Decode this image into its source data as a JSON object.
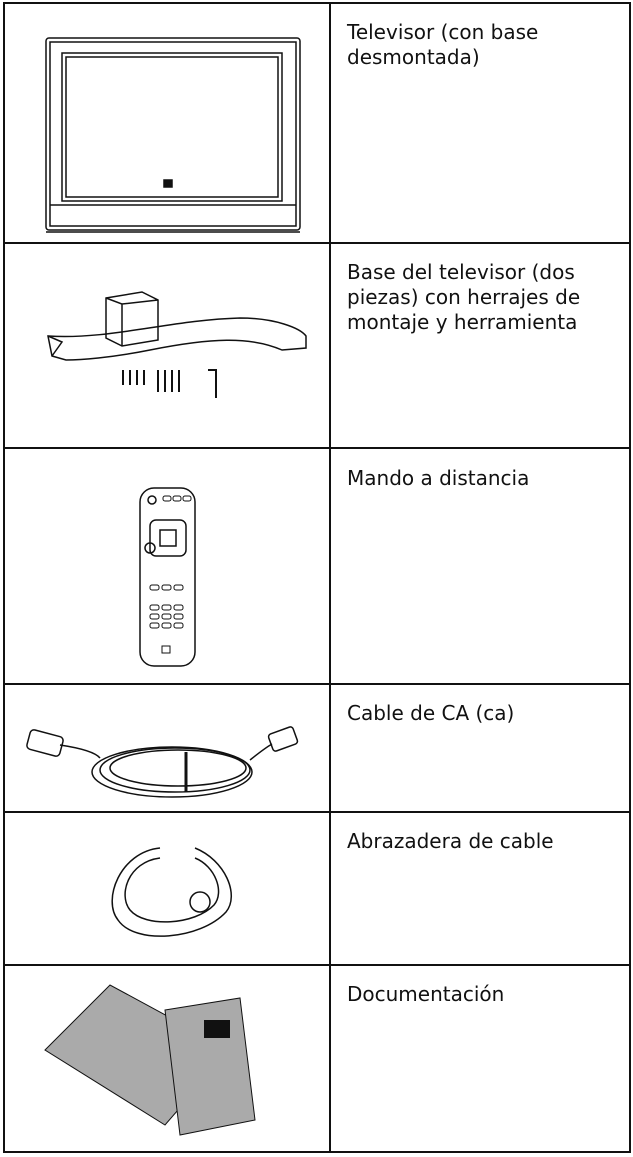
{
  "table": {
    "rows": [
      {
        "item": "Televisor (con base desmontada)"
      },
      {
        "item": "Base del televisor (dos piezas) con herrajes de montaje y herramienta"
      },
      {
        "item": "Mando a distancia"
      },
      {
        "item": "Cable de CA (ca)"
      },
      {
        "item": "Abrazadera de cable"
      },
      {
        "item": "Documentación"
      }
    ]
  }
}
